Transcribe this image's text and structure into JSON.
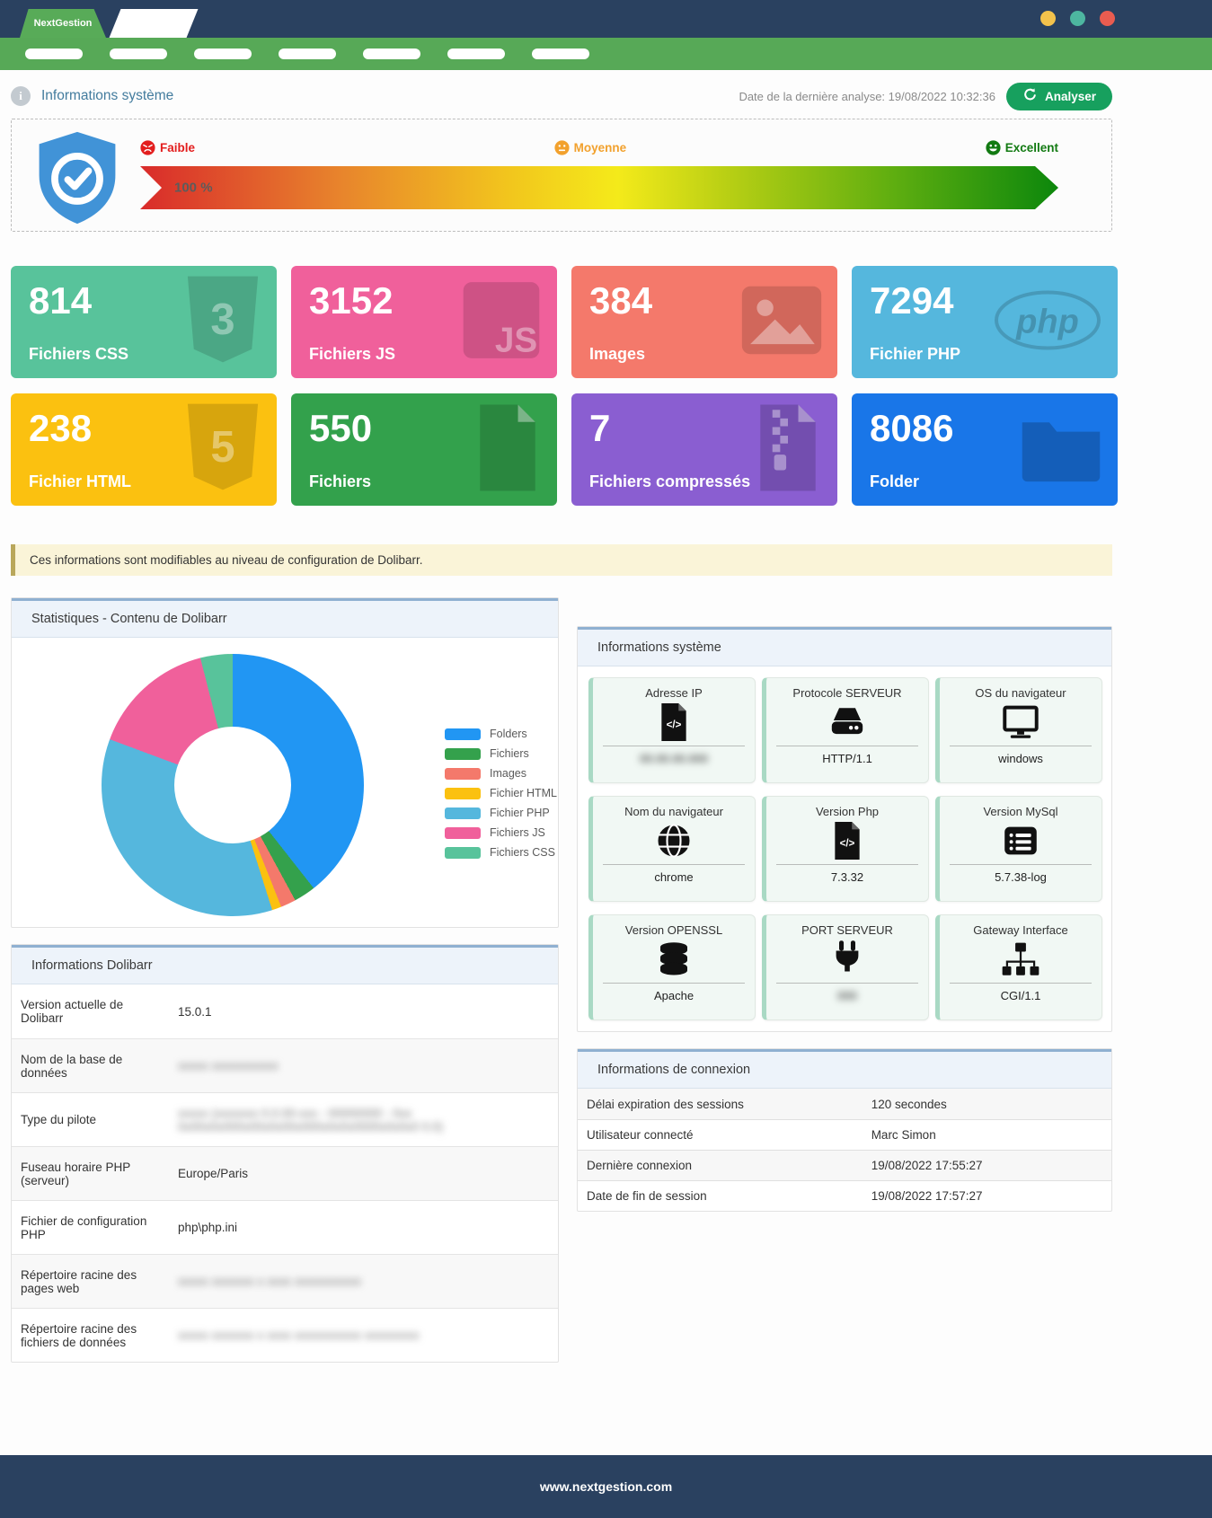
{
  "window": {
    "brand": "NextGestion",
    "dot_colors": [
      "#f3c24c",
      "#4db6a0",
      "#e95c50"
    ]
  },
  "nav": {
    "placeholder_count": 7
  },
  "page_header": {
    "title": "Informations système",
    "analysis_label": "Date de la dernière analyse:",
    "analysis_datetime": "19/08/2022 10:32:36",
    "analyser_button": "Analyser"
  },
  "gauge": {
    "percent_label": "100 %",
    "levels": [
      {
        "label": "Faible",
        "color": "#e31e1e",
        "icon": "angry-face-icon"
      },
      {
        "label": "Moyenne",
        "color": "#f2a12d",
        "icon": "neutral-face-icon"
      },
      {
        "label": "Excellent",
        "color": "#127a12",
        "icon": "happy-face-icon"
      }
    ]
  },
  "stat_cards": [
    {
      "value": "814",
      "label": "Fichiers CSS",
      "color": "#58c39b",
      "icon": "css3-icon"
    },
    {
      "value": "3152",
      "label": "Fichiers JS",
      "color": "#f0609b",
      "icon": "js-icon"
    },
    {
      "value": "384",
      "label": "Images",
      "color": "#f4796b",
      "icon": "image-icon"
    },
    {
      "value": "7294",
      "label": "Fichier PHP",
      "color": "#55b7dd",
      "icon": "php-icon"
    },
    {
      "value": "238",
      "label": "Fichier HTML",
      "color": "#fbc110",
      "icon": "html5-icon"
    },
    {
      "value": "550",
      "label": "Fichiers",
      "color": "#33a14c",
      "icon": "file-icon"
    },
    {
      "value": "7",
      "label": "Fichiers compressés",
      "color": "#8a5ed1",
      "icon": "zip-icon"
    },
    {
      "value": "8086",
      "label": "Folder",
      "color": "#1976e8",
      "icon": "folder-icon"
    }
  ],
  "note": "Ces informations sont modifiables au niveau de configuration de Dolibarr.",
  "stats_panel": {
    "title": "Statistiques - Contenu de Dolibarr"
  },
  "chart_data": {
    "type": "pie",
    "donut": true,
    "labels": [
      "Folders",
      "Fichiers",
      "Images",
      "Fichier HTML",
      "Fichier PHP",
      "Fichiers JS",
      "Fichiers CSS"
    ],
    "values": [
      8086,
      550,
      384,
      238,
      7294,
      3152,
      814
    ],
    "colors": [
      "#2196f3",
      "#34a14c",
      "#f4796b",
      "#fbc110",
      "#55b7dd",
      "#f0609b",
      "#58c39b"
    ],
    "title": "Statistiques - Contenu de Dolibarr",
    "legend_position": "right"
  },
  "dolibarr_panel": {
    "title": "Informations Dolibarr",
    "rows": [
      {
        "label": "Version actuelle de Dolibarr",
        "value": "15.0.1",
        "redacted": false
      },
      {
        "label": "Nom de la base de données",
        "value": "xxxxx xxxxxxxxxxx",
        "redacted": true
      },
      {
        "label": "Type du pilote",
        "value": "xxxxx (xxxxxxx 0.0.00-xxx - 00000000 - 0xx 0x00x0x000x00x0x00x000x0x0x0000x0x0x0 0.0)",
        "redacted": true
      },
      {
        "label": "Fuseau horaire PHP (serveur)",
        "value": "Europe/Paris",
        "redacted": false
      },
      {
        "label": "Fichier de configuration PHP",
        "value": "php\\php.ini",
        "redacted": false
      },
      {
        "label": "Répertoire racine des pages web",
        "value": "xxxxx xxxxxxx x xxxx xxxxxxxxxxx",
        "redacted": true
      },
      {
        "label": "Répertoire racine des fichiers de données",
        "value": "xxxxx xxxxxxx x xxxx xxxxxxxxxxx xxxxxxxxx",
        "redacted": true
      }
    ]
  },
  "system_panel": {
    "title": "Informations système",
    "cards": [
      {
        "title": "Adresse IP",
        "icon": "file-code-icon",
        "value": "00.00.00.000",
        "redacted": true
      },
      {
        "title": "Protocole SERVEUR",
        "icon": "server-icon",
        "value": "HTTP/1.1",
        "redacted": false
      },
      {
        "title": "OS du navigateur",
        "icon": "monitor-icon",
        "value": "windows",
        "redacted": false
      },
      {
        "title": "Nom du navigateur",
        "icon": "globe-icon",
        "value": "chrome",
        "redacted": false
      },
      {
        "title": "Version Php",
        "icon": "file-code-icon",
        "value": "7.3.32",
        "redacted": false
      },
      {
        "title": "Version MySql",
        "icon": "list-icon",
        "value": "5.7.38-log",
        "redacted": false
      },
      {
        "title": "Version OPENSSL",
        "icon": "database-icon",
        "value": "Apache",
        "redacted": false
      },
      {
        "title": "PORT SERVEUR",
        "icon": "plug-icon",
        "value": "000",
        "redacted": true
      },
      {
        "title": "Gateway Interface",
        "icon": "sitemap-icon",
        "value": "CGI/1.1",
        "redacted": false
      }
    ]
  },
  "connection_panel": {
    "title": "Informations de connexion",
    "rows": [
      {
        "label": "Délai expiration des sessions",
        "value": "120 secondes"
      },
      {
        "label": "Utilisateur connecté",
        "value": "Marc Simon"
      },
      {
        "label": "Dernière connexion",
        "value": "19/08/2022 17:55:27"
      },
      {
        "label": "Date de fin de session",
        "value": "19/08/2022 17:57:27"
      }
    ]
  },
  "footer": {
    "text": "www.nextgestion.com"
  }
}
